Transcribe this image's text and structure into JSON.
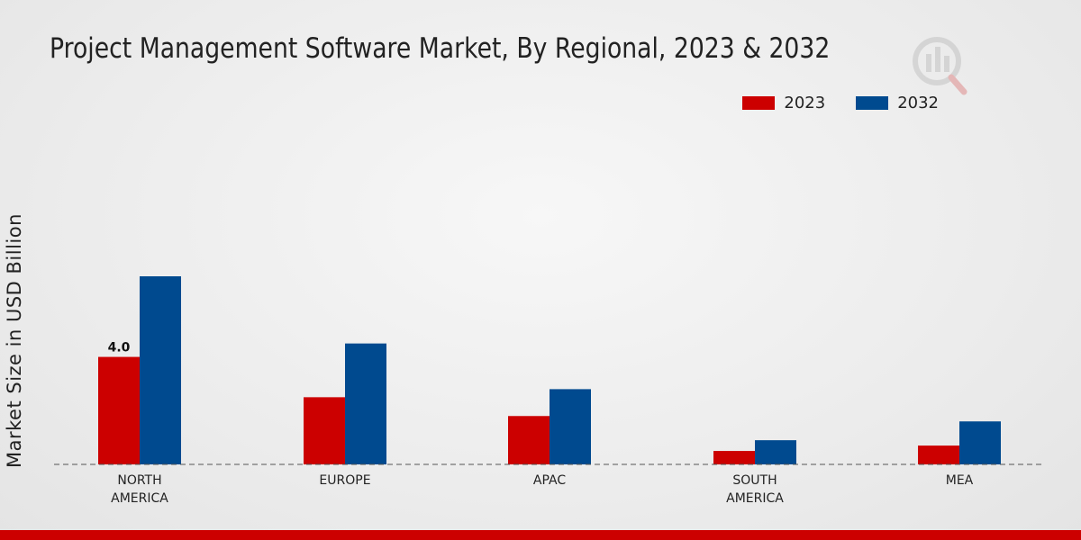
{
  "colors": {
    "series_2023": "#cc0000",
    "series_2032": "#004a8f",
    "bottom_bar": "#cc0000"
  },
  "chart_data": {
    "type": "bar",
    "title": "Project Management Software Market, By Regional, 2023 & 2032",
    "ylabel": "Market Size in USD Billion",
    "xlabel": "",
    "categories": [
      "NORTH AMERICA",
      "EUROPE",
      "APAC",
      "SOUTH AMERICA",
      "MEA"
    ],
    "category_lines": [
      [
        "NORTH",
        "AMERICA"
      ],
      [
        "EUROPE"
      ],
      [
        "APAC"
      ],
      [
        "SOUTH",
        "AMERICA"
      ],
      [
        "MEA"
      ]
    ],
    "series": [
      {
        "name": "2023",
        "values": [
          4.0,
          2.5,
          1.8,
          0.5,
          0.7
        ]
      },
      {
        "name": "2032",
        "values": [
          7.0,
          4.5,
          2.8,
          0.9,
          1.6
        ]
      }
    ],
    "data_labels": [
      {
        "series": 0,
        "index": 0,
        "text": "4.0"
      }
    ],
    "ylim": [
      0,
      10
    ],
    "legend": "top-right",
    "grid": false
  }
}
